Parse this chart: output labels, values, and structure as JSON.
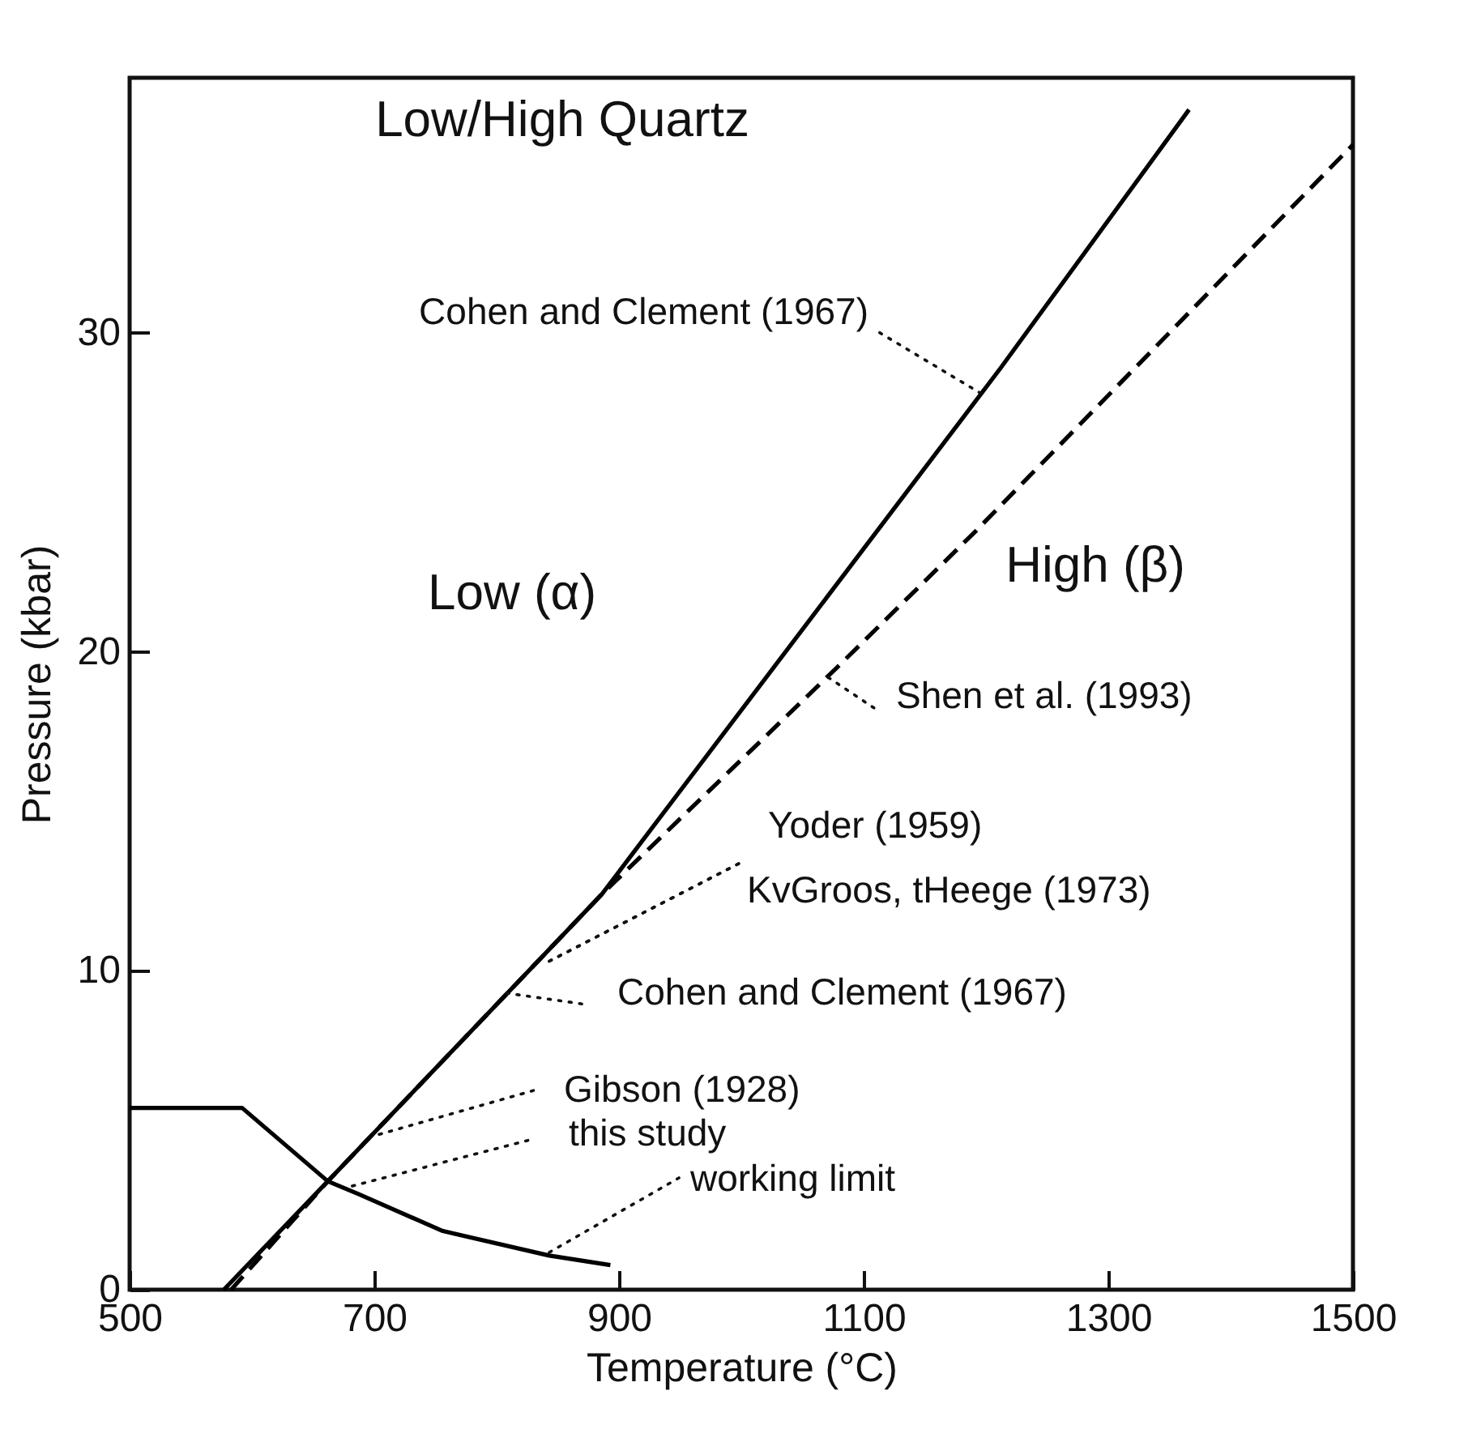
{
  "chart_data": {
    "type": "line",
    "xlabel": "Temperature (°C)",
    "ylabel": "Pressure (kbar)",
    "xlim": [
      500,
      1500
    ],
    "ylim": [
      0,
      38
    ],
    "xticks": [
      500,
      700,
      900,
      1100,
      1300,
      1500
    ],
    "yticks": [
      0,
      10,
      20,
      30
    ],
    "marker": "none",
    "series": [
      {
        "color": "#000000",
        "line_style": "solid",
        "x": [
          577,
          662,
          886,
          1212,
          1366
        ],
        "values": [
          0,
          3.4,
          12.4,
          28.9,
          37
        ]
      },
      {
        "color": "#000000",
        "line_style": "dashed",
        "x": [
          583,
          662,
          886,
          1078,
          1192,
          1500
        ],
        "values": [
          0,
          3.4,
          12.4,
          19.5,
          23.8,
          35.9
        ]
      },
      {
        "color": "#000000",
        "line_style": "solid",
        "x": [
          500,
          592,
          662,
          687,
          756,
          843,
          893
        ],
        "values": [
          5.7,
          5.7,
          3.4,
          3.0,
          1.84,
          1.07,
          0.77
        ]
      }
    ],
    "annotations": [
      "Low/High Quartz",
      "Low (α)",
      "High (β)",
      {
        "text": "Cohen and Clement (1967)",
        "x": 1196,
        "y": 28.1
      },
      {
        "text": "Shen et al. (1993)",
        "x": 1071,
        "y": 19.2
      },
      {
        "text": "Yoder (1959)",
        "x": 843,
        "y": 10.3
      },
      {
        "text": "KvGroos, tHeege (1973)",
        "x": 843,
        "y": 10.3
      },
      {
        "text": "Cohen and Clement (1967)",
        "x": 808,
        "y": 9.3
      },
      {
        "text": "Gibson (1928)",
        "x": 704,
        "y": 4.87
      },
      {
        "text": "this study",
        "x": 682,
        "y": 3.25
      },
      {
        "text": "working limit",
        "x": 843,
        "y": 1.17
      }
    ]
  }
}
